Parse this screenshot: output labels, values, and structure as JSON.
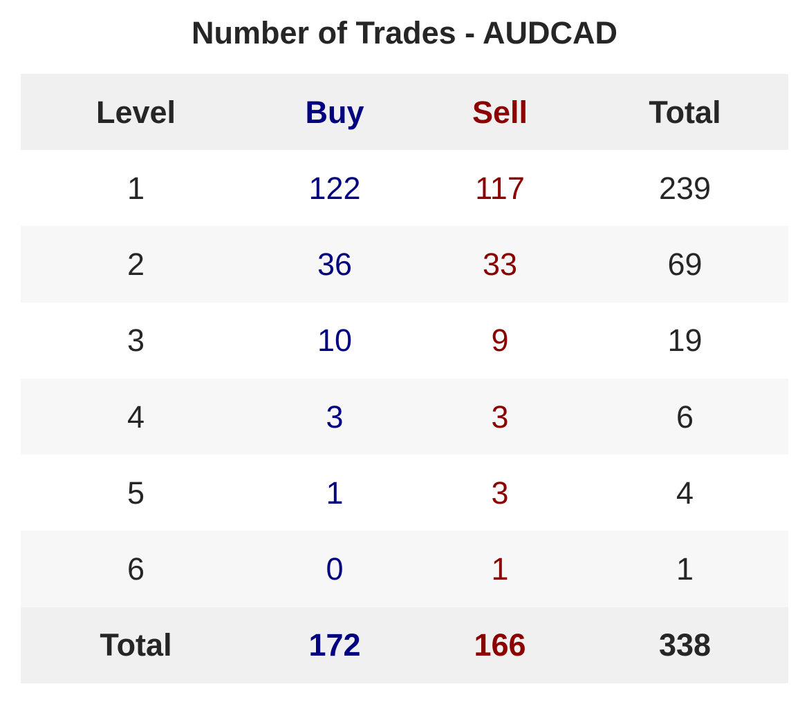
{
  "chart_data": {
    "type": "table",
    "title": "Number of Trades - AUDCAD",
    "columns": [
      "Level",
      "Buy",
      "Sell",
      "Total"
    ],
    "rows": [
      [
        "1",
        "122",
        "117",
        "239"
      ],
      [
        "2",
        "36",
        "33",
        "69"
      ],
      [
        "3",
        "10",
        "9",
        "19"
      ],
      [
        "4",
        "3",
        "3",
        "6"
      ],
      [
        "5",
        "1",
        "3",
        "4"
      ],
      [
        "6",
        "0",
        "1",
        "1"
      ]
    ],
    "footer": [
      "Total",
      "172",
      "166",
      "338"
    ],
    "colors": {
      "buy": "#000080",
      "sell": "#8b0000",
      "text": "#262626",
      "header_bg": "#f0f0f0",
      "stripe_bg": "#f7f7f7"
    }
  }
}
